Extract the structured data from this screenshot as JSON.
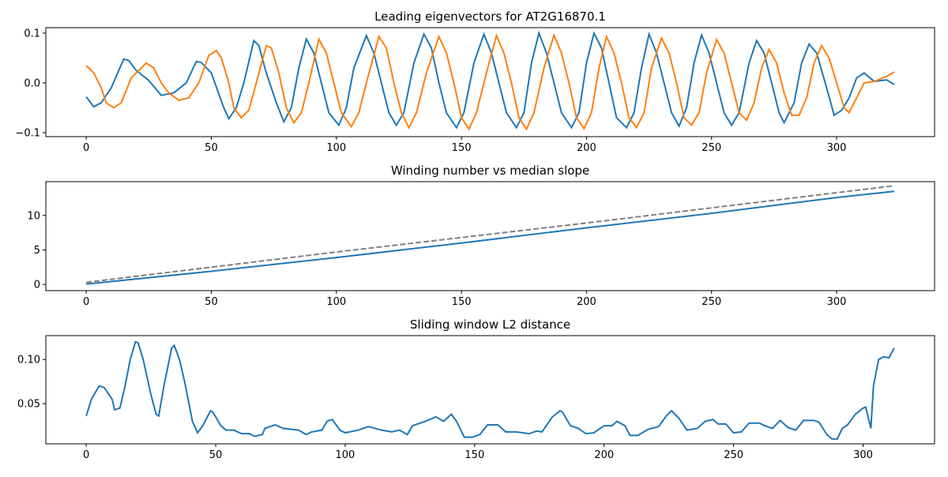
{
  "chart_data": [
    {
      "type": "line",
      "title": "Leading eigenvectors for AT2G16870.1",
      "xlim": [
        -16.15,
        339.15
      ],
      "ylim": [
        -0.108,
        0.111
      ],
      "xticks": [
        0,
        50,
        100,
        150,
        200,
        250,
        300
      ],
      "yticks": [
        {
          "value": -0.1,
          "label": "−0.1"
        },
        {
          "value": 0,
          "label": "0.0"
        },
        0.1
      ],
      "series": [
        {
          "color": "#1f77b4",
          "x": [
            0,
            3,
            6,
            10,
            15,
            17,
            20,
            25,
            30,
            35,
            40,
            44,
            46,
            50,
            55,
            57,
            60,
            63,
            67,
            69,
            72,
            76,
            79,
            82,
            85,
            88,
            91,
            94,
            97,
            101,
            104,
            107,
            112,
            115,
            118,
            121,
            124,
            127,
            131,
            135,
            138,
            141,
            144,
            148,
            151,
            155,
            159,
            162,
            165,
            168,
            172,
            175,
            178,
            181,
            184,
            187,
            190,
            194,
            197,
            200,
            203,
            206,
            209,
            212,
            216,
            219,
            222,
            225,
            228,
            231,
            234,
            237,
            240,
            243,
            246,
            249,
            252,
            255,
            258,
            261,
            265,
            268,
            271,
            274,
            277,
            279,
            283,
            286,
            289,
            292,
            296,
            299,
            302,
            305,
            308,
            311,
            315,
            320,
            323
          ],
          "values": [
            -0.028,
            -0.048,
            -0.04,
            -0.01,
            0.048,
            0.045,
            0.025,
            0.005,
            -0.025,
            -0.02,
            0.0,
            0.043,
            0.041,
            0.02,
            -0.05,
            -0.072,
            -0.05,
            0.0,
            0.085,
            0.075,
            0.02,
            -0.04,
            -0.078,
            -0.05,
            0.03,
            0.088,
            0.06,
            0.0,
            -0.06,
            -0.085,
            -0.05,
            0.03,
            0.095,
            0.06,
            0.0,
            -0.06,
            -0.085,
            -0.06,
            0.04,
            0.098,
            0.07,
            0.0,
            -0.06,
            -0.09,
            -0.06,
            0.04,
            0.098,
            0.06,
            0.0,
            -0.06,
            -0.09,
            -0.06,
            0.04,
            0.1,
            0.06,
            0.0,
            -0.06,
            -0.09,
            -0.06,
            0.04,
            0.1,
            0.07,
            0.0,
            -0.07,
            -0.09,
            -0.06,
            0.03,
            0.098,
            0.06,
            0.0,
            -0.06,
            -0.087,
            -0.05,
            0.04,
            0.096,
            0.06,
            0.0,
            -0.06,
            -0.085,
            -0.06,
            0.04,
            0.085,
            0.06,
            0.0,
            -0.06,
            -0.08,
            -0.04,
            0.04,
            0.078,
            0.06,
            -0.01,
            -0.065,
            -0.055,
            -0.03,
            0.01,
            0.02,
            0.003,
            0.006,
            -0.003
          ]
        },
        {
          "color": "#ff7f0e",
          "x": [
            0,
            3,
            6,
            8,
            11,
            14,
            18,
            20,
            24,
            27,
            30,
            33,
            37,
            41,
            45,
            49,
            52,
            54,
            57,
            59,
            62,
            65,
            68,
            72,
            74,
            77,
            80,
            83,
            86,
            89,
            93,
            96,
            99,
            102,
            106,
            109,
            112,
            117,
            120,
            123,
            126,
            129,
            132,
            136,
            141,
            144,
            147,
            150,
            153,
            156,
            160,
            164,
            167,
            170,
            173,
            176,
            179,
            183,
            187,
            190,
            193,
            196,
            199,
            202,
            205,
            208,
            211,
            214,
            217,
            220,
            223,
            226,
            230,
            233,
            236,
            239,
            242,
            245,
            248,
            252,
            255,
            258,
            261,
            264,
            267,
            270,
            273,
            276,
            279,
            282,
            285,
            288,
            291,
            294,
            297,
            300,
            303,
            305,
            308,
            311,
            315,
            320,
            323
          ],
          "values": [
            0.035,
            0.02,
            -0.01,
            -0.04,
            -0.05,
            -0.04,
            0.01,
            0.02,
            0.04,
            0.03,
            0.0,
            -0.02,
            -0.035,
            -0.03,
            0.0,
            0.055,
            0.065,
            0.05,
            0.0,
            -0.05,
            -0.07,
            -0.055,
            0.0,
            0.075,
            0.07,
            0.02,
            -0.05,
            -0.08,
            -0.06,
            0.0,
            0.088,
            0.06,
            0.0,
            -0.06,
            -0.088,
            -0.06,
            0.0,
            0.093,
            0.07,
            0.0,
            -0.06,
            -0.09,
            -0.06,
            0.02,
            0.093,
            0.06,
            0.0,
            -0.07,
            -0.093,
            -0.06,
            0.02,
            0.095,
            0.06,
            0.0,
            -0.07,
            -0.093,
            -0.06,
            0.03,
            0.096,
            0.06,
            0.0,
            -0.07,
            -0.092,
            -0.06,
            0.03,
            0.093,
            0.06,
            0.0,
            -0.07,
            -0.09,
            -0.06,
            0.03,
            0.09,
            0.06,
            0.0,
            -0.07,
            -0.085,
            -0.06,
            0.02,
            0.087,
            0.06,
            0.0,
            -0.06,
            -0.075,
            -0.04,
            0.03,
            0.067,
            0.04,
            -0.02,
            -0.065,
            -0.065,
            -0.03,
            0.04,
            0.075,
            0.05,
            0.0,
            -0.05,
            -0.06,
            -0.03,
            0.0,
            0.003,
            0.013,
            0.022
          ]
        }
      ]
    },
    {
      "type": "line",
      "title": "Winding number vs median slope",
      "xlim": [
        -16.15,
        339.15
      ],
      "ylim": [
        -0.9,
        14.9
      ],
      "xticks": [
        0,
        50,
        100,
        150,
        200,
        250,
        300
      ],
      "yticks": [
        0,
        5,
        10
      ],
      "series": [
        {
          "color": "#1f77b4",
          "x": [
            0,
            50,
            100,
            150,
            200,
            250,
            300,
            323
          ],
          "values": [
            0.05,
            1.9,
            3.9,
            6.0,
            8.2,
            10.3,
            12.6,
            13.5
          ]
        },
        {
          "color": "#808080",
          "linestyle": "dashed",
          "x": [
            0,
            50,
            100,
            150,
            200,
            250,
            300,
            323
          ],
          "values": [
            0.3,
            2.5,
            4.7,
            6.8,
            8.9,
            11.1,
            13.3,
            14.3
          ]
        }
      ]
    },
    {
      "type": "line",
      "title": "Sliding window L2 distance",
      "xlim": [
        -15.6,
        327.6
      ],
      "ylim": [
        0.0045,
        0.127
      ],
      "xticks": [
        0,
        50,
        100,
        150,
        200,
        250,
        300
      ],
      "yticks": [
        0.05,
        {
          "value": 0.1,
          "label": "0.10"
        }
      ],
      "series": [
        {
          "color": "#1f77b4",
          "x": [
            0,
            2,
            5,
            7,
            10,
            11,
            13,
            15,
            17,
            19,
            20,
            22,
            25,
            27,
            28,
            30,
            33,
            34,
            36,
            38,
            41,
            43,
            45,
            48,
            49,
            52,
            54,
            57,
            60,
            63,
            65,
            68,
            69,
            73,
            76,
            79,
            82,
            85,
            87,
            91,
            93,
            95,
            98,
            100,
            105,
            109,
            114,
            118,
            121,
            124,
            126,
            131,
            135,
            138,
            141,
            143,
            146,
            149,
            152,
            155,
            159,
            162,
            166,
            171,
            174,
            176,
            180,
            183,
            184,
            187,
            190,
            193,
            196,
            200,
            203,
            205,
            208,
            210,
            213,
            217,
            221,
            224,
            226,
            229,
            232,
            236,
            239,
            242,
            244,
            247,
            250,
            253,
            256,
            260,
            262,
            265,
            268,
            271,
            274,
            277,
            281,
            283,
            286,
            288,
            290,
            292,
            294,
            297,
            300,
            301,
            303,
            304,
            306,
            308,
            310,
            312
          ],
          "values": [
            0.036,
            0.055,
            0.07,
            0.068,
            0.055,
            0.043,
            0.045,
            0.07,
            0.1,
            0.12,
            0.119,
            0.1,
            0.06,
            0.038,
            0.036,
            0.07,
            0.113,
            0.116,
            0.1,
            0.075,
            0.03,
            0.017,
            0.025,
            0.042,
            0.04,
            0.025,
            0.02,
            0.02,
            0.016,
            0.016,
            0.013,
            0.015,
            0.022,
            0.026,
            0.022,
            0.021,
            0.02,
            0.015,
            0.018,
            0.02,
            0.03,
            0.032,
            0.02,
            0.017,
            0.02,
            0.024,
            0.02,
            0.018,
            0.02,
            0.015,
            0.025,
            0.03,
            0.035,
            0.03,
            0.038,
            0.03,
            0.012,
            0.012,
            0.015,
            0.026,
            0.026,
            0.018,
            0.018,
            0.016,
            0.019,
            0.018,
            0.035,
            0.042,
            0.04,
            0.025,
            0.022,
            0.016,
            0.017,
            0.025,
            0.025,
            0.03,
            0.025,
            0.014,
            0.014,
            0.021,
            0.024,
            0.036,
            0.042,
            0.033,
            0.02,
            0.022,
            0.03,
            0.032,
            0.027,
            0.027,
            0.017,
            0.018,
            0.028,
            0.028,
            0.025,
            0.022,
            0.031,
            0.023,
            0.02,
            0.031,
            0.031,
            0.029,
            0.015,
            0.01,
            0.01,
            0.022,
            0.026,
            0.038,
            0.045,
            0.046,
            0.022,
            0.07,
            0.1,
            0.103,
            0.102,
            0.113
          ]
        }
      ]
    }
  ]
}
